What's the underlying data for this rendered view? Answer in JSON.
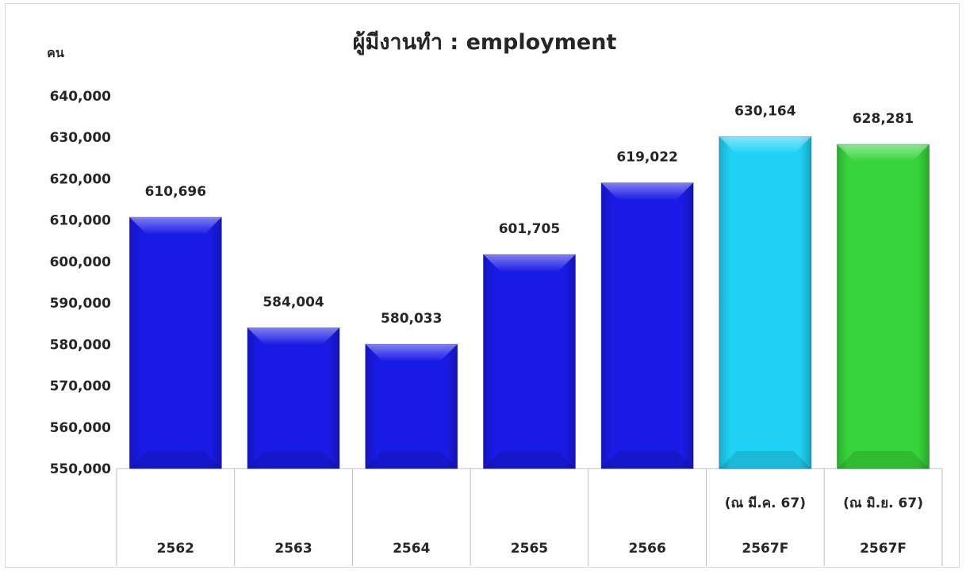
{
  "chart_data": {
    "type": "bar",
    "title": "ผู้มีงานทำ : employment",
    "ylabel": "คน",
    "xlabel": "",
    "ylim": [
      550000,
      640000
    ],
    "ytick_step": 10000,
    "ytick_labels": [
      "550,000",
      "560,000",
      "570,000",
      "580,000",
      "590,000",
      "600,000",
      "610,000",
      "620,000",
      "630,000",
      "640,000"
    ],
    "categories": [
      {
        "sub": "",
        "label": "2562"
      },
      {
        "sub": "",
        "label": "2563"
      },
      {
        "sub": "",
        "label": "2564"
      },
      {
        "sub": "",
        "label": "2565"
      },
      {
        "sub": "",
        "label": "2566"
      },
      {
        "sub": "(ณ มี.ค. 67)",
        "label": "2567F"
      },
      {
        "sub": "(ณ มิ.ย. 67)",
        "label": "2567F"
      }
    ],
    "values": [
      610696,
      584004,
      580033,
      601705,
      619022,
      630164,
      628281
    ],
    "value_labels": [
      "610,696",
      "584,004",
      "580,033",
      "601,705",
      "619,022",
      "630,164",
      "628,281"
    ],
    "bar_colors": [
      "#1a1ae6",
      "#1a1ae6",
      "#1a1ae6",
      "#1a1ae6",
      "#1a1ae6",
      "#1fd2f5",
      "#36d43a"
    ],
    "grid": false,
    "legend": "none"
  }
}
